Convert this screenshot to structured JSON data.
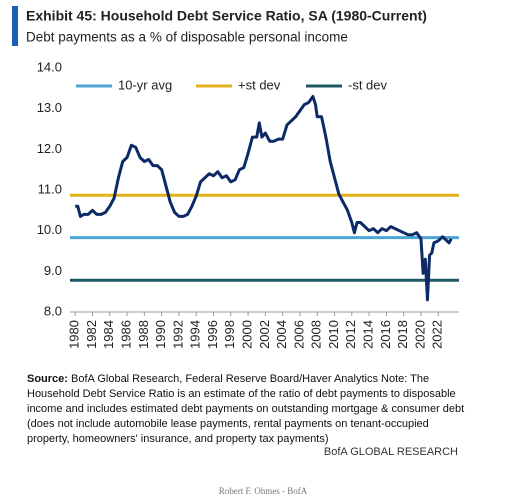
{
  "chart_data": {
    "type": "line",
    "title": "Exhibit 45: Household Debt Service Ratio, SA (1980-Current)",
    "subtitle": "Debt payments as a % of disposable personal income",
    "x": [
      1980,
      1980.3,
      1980.6,
      1981,
      1981.5,
      1982,
      1982.5,
      1983,
      1983.5,
      1984,
      1984.5,
      1985,
      1985.5,
      1986,
      1986.5,
      1987,
      1987.5,
      1988,
      1988.5,
      1989,
      1989.5,
      1990,
      1990.5,
      1991,
      1991.5,
      1992,
      1992.5,
      1993,
      1993.5,
      1994,
      1994.5,
      1995,
      1995.5,
      1996,
      1996.5,
      1997,
      1997.5,
      1998,
      1998.5,
      1999,
      1999.5,
      2000,
      2000.5,
      2001,
      2001.3,
      2001.6,
      2002,
      2002.5,
      2003,
      2003.5,
      2004,
      2004.5,
      2005,
      2005.5,
      2006,
      2006.5,
      2007,
      2007.5,
      2007.8,
      2008,
      2008.5,
      2009,
      2009.5,
      2010,
      2010.5,
      2011,
      2011.5,
      2012,
      2012.3,
      2012.6,
      2013,
      2013.5,
      2014,
      2014.5,
      2015,
      2015.5,
      2016,
      2016.5,
      2017,
      2017.5,
      2018,
      2018.5,
      2019,
      2019.5,
      2020,
      2020.25,
      2020.5,
      2020.75,
      2021,
      2021.25,
      2021.5,
      2022,
      2022.5,
      2023,
      2023.25,
      2023.5
    ],
    "series": [
      {
        "color": "#0c2a66",
        "values": [
          10.6,
          10.6,
          10.35,
          10.4,
          10.4,
          10.5,
          10.4,
          10.4,
          10.45,
          10.6,
          10.8,
          11.3,
          11.7,
          11.8,
          12.1,
          12.05,
          11.8,
          11.7,
          11.75,
          11.6,
          11.6,
          11.5,
          11.1,
          10.7,
          10.45,
          10.35,
          10.35,
          10.4,
          10.6,
          10.85,
          11.2,
          11.3,
          11.4,
          11.35,
          11.45,
          11.3,
          11.35,
          11.2,
          11.25,
          11.5,
          11.55,
          11.9,
          12.3,
          12.3,
          12.65,
          12.3,
          12.4,
          12.2,
          12.2,
          12.25,
          12.25,
          12.6,
          12.7,
          12.8,
          12.95,
          13.1,
          13.15,
          13.3,
          13.1,
          12.8,
          12.8,
          12.3,
          11.7,
          11.3,
          10.9,
          10.7,
          10.5,
          10.2,
          9.95,
          10.2,
          10.2,
          10.1,
          10.0,
          10.05,
          9.95,
          10.05,
          10.0,
          10.1,
          10.05,
          10.0,
          9.95,
          9.9,
          9.9,
          9.95,
          9.8,
          8.95,
          9.3,
          8.3,
          9.4,
          9.45,
          9.7,
          9.75,
          9.85,
          9.75,
          9.7,
          9.8
        ]
      }
    ],
    "reference_lines": [
      {
        "name": "10-yr avg",
        "color": "#4ba6d6",
        "value": 9.83
      },
      {
        "name": "+st dev",
        "color": "#e3b21c",
        "value": 10.87
      },
      {
        "name": "-st dev",
        "color": "#1e5864",
        "value": 8.78
      }
    ],
    "xlim": [
      1979.4,
      2024.4
    ],
    "xticks": [
      1980,
      1982,
      1984,
      1986,
      1988,
      1990,
      1992,
      1994,
      1996,
      1998,
      2000,
      2002,
      2004,
      2006,
      2008,
      2010,
      2012,
      2014,
      2016,
      2018,
      2020,
      2022
    ],
    "ylim": [
      8,
      14
    ],
    "yticks": [
      {
        "value": 8,
        "label": "8.0"
      },
      {
        "value": 9,
        "label": "9.0"
      },
      {
        "value": 10,
        "label": "10.0"
      },
      {
        "value": 11,
        "label": "11.0"
      },
      {
        "value": 12,
        "label": "12.0"
      },
      {
        "value": 13,
        "label": "13.0"
      },
      {
        "value": 14,
        "label": "14.0"
      }
    ],
    "grid": false
  },
  "notes": {
    "source_label": "Source:",
    "source_text": "BofA Global Research, Federal Reserve Board/Haver Analytics Note: The Household Debt Service Ratio is an estimate of the ratio of debt payments to disposable income and includes estimated debt payments on outstanding mortgage & consumer debt (does not include automobile lease payments, rental payments on tenant-occupied property, homeowners' insurance, and property tax payments)",
    "brand": "BofA GLOBAL RESEARCH",
    "credit": "Robert F. Ohmes - BofA"
  }
}
